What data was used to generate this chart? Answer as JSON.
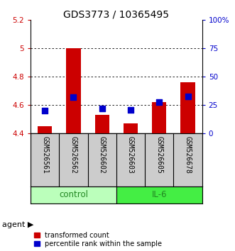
{
  "title": "GDS3773 / 10365495",
  "samples": [
    "GSM526561",
    "GSM526562",
    "GSM526602",
    "GSM526603",
    "GSM526605",
    "GSM526678"
  ],
  "groups": [
    "control",
    "control",
    "control",
    "IL-6",
    "IL-6",
    "IL-6"
  ],
  "red_values": [
    4.45,
    5.0,
    4.53,
    4.47,
    4.62,
    4.76
  ],
  "blue_values": [
    20,
    32,
    22,
    21,
    28,
    33
  ],
  "ylim_left": [
    4.4,
    5.2
  ],
  "ylim_right": [
    0,
    100
  ],
  "yticks_left": [
    4.4,
    4.6,
    4.8,
    5.0,
    5.2
  ],
  "ytick_labels_left": [
    "4.4",
    "4.6",
    "4.8",
    "5",
    "5.2"
  ],
  "yticks_right": [
    0,
    25,
    50,
    75,
    100
  ],
  "ytick_labels_right": [
    "0",
    "25",
    "50",
    "75",
    "100%"
  ],
  "hlines": [
    4.6,
    4.8,
    5.0
  ],
  "bar_color": "#cc0000",
  "dot_color": "#0000cc",
  "bar_width": 0.5,
  "dot_size": 30,
  "control_color": "#bbffbb",
  "il6_color": "#44ee44",
  "sample_bg_color": "#cccccc",
  "group_label_color": "#228822",
  "left_axis_color": "#cc0000",
  "right_axis_color": "#0000cc",
  "title_fontsize": 10,
  "tick_fontsize": 7.5,
  "sample_fontsize": 7,
  "label_fontsize": 8.5,
  "legend_fontsize": 7
}
